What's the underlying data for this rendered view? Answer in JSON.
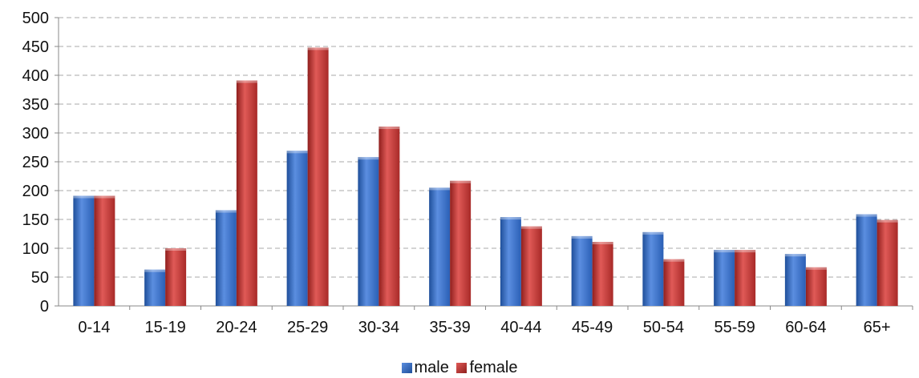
{
  "chart_data": {
    "type": "bar",
    "title": "",
    "xlabel": "",
    "ylabel": "",
    "categories": [
      "0-14",
      "15-19",
      "20-24",
      "25-29",
      "30-34",
      "35-39",
      "40-44",
      "45-49",
      "50-54",
      "55-59",
      "60-64",
      "65+"
    ],
    "series": [
      {
        "name": "male",
        "color": "#3a6fc4",
        "values": [
          191,
          63,
          166,
          269,
          258,
          205,
          154,
          121,
          128,
          97,
          90,
          159
        ]
      },
      {
        "name": "female",
        "color": "#c93a38",
        "values": [
          191,
          100,
          391,
          448,
          311,
          217,
          138,
          111,
          81,
          97,
          67,
          149
        ]
      }
    ],
    "ylim": [
      0,
      500
    ],
    "yticks": [
      0,
      50,
      100,
      150,
      200,
      250,
      300,
      350,
      400,
      450,
      500
    ],
    "grid": true,
    "legend_position": "bottom"
  }
}
